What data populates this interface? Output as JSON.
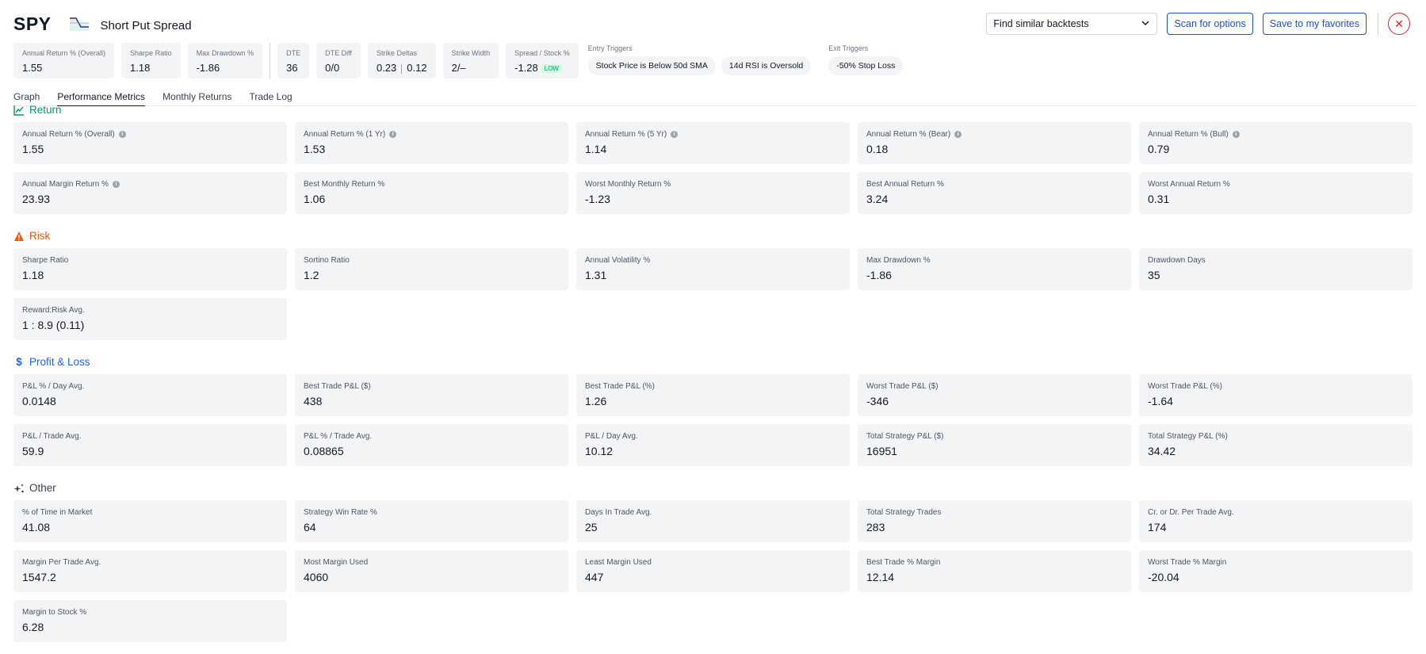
{
  "header": {
    "ticker": "SPY",
    "strategy_name": "Short Put Spread",
    "similar_select": "Find similar backtests",
    "scan_button": "Scan for options",
    "favorites_button": "Save to my favorites",
    "close_symbol": "✕"
  },
  "summary": {
    "annual_return": {
      "label": "Annual Return % (Overall)",
      "value": "1.55"
    },
    "sharpe": {
      "label": "Sharpe Ratio",
      "value": "1.18"
    },
    "max_drawdown": {
      "label": "Max Drawdown %",
      "value": "-1.86"
    },
    "dte": {
      "label": "DTE",
      "value": "36"
    },
    "dte_diff": {
      "label": "DTE Diff",
      "value": "0/0"
    },
    "strike_deltas": {
      "label": "Strike Deltas",
      "value_a": "0.23",
      "value_b": "0.12"
    },
    "strike_width": {
      "label": "Strike Width",
      "value": "2/–"
    },
    "spread_stock": {
      "label": "Spread / Stock %",
      "value": "-1.28",
      "badge": "LOW"
    },
    "entry_triggers": {
      "label": "Entry Triggers",
      "items": [
        "Stock Price is Below 50d SMA",
        "14d RSI is Oversold"
      ]
    },
    "exit_triggers": {
      "label": "Exit Triggers",
      "items": [
        "-50% Stop Loss"
      ]
    }
  },
  "tabs": [
    "Graph",
    "Performance Metrics",
    "Monthly Returns",
    "Trade Log"
  ],
  "active_tab": "Performance Metrics",
  "colors": {
    "return": "#059669",
    "risk": "#ea580c",
    "pnl": "#2563eb",
    "other": "#374151"
  },
  "sections": {
    "return": {
      "title": "Return",
      "rows": [
        [
          {
            "label": "Annual Return % (Overall)",
            "value": "1.55",
            "info": true
          },
          {
            "label": "Annual Return % (1 Yr)",
            "value": "1.53",
            "info": true
          },
          {
            "label": "Annual Return % (5 Yr)",
            "value": "1.14",
            "info": true
          },
          {
            "label": "Annual Return % (Bear)",
            "value": "0.18",
            "info": true
          },
          {
            "label": "Annual Return % (Bull)",
            "value": "0.79",
            "info": true
          }
        ],
        [
          {
            "label": "Annual Margin Return %",
            "value": "23.93",
            "info": true
          },
          {
            "label": "Best Monthly Return %",
            "value": "1.06"
          },
          {
            "label": "Worst Monthly Return %",
            "value": "-1.23"
          },
          {
            "label": "Best Annual Return %",
            "value": "3.24"
          },
          {
            "label": "Worst Annual Return %",
            "value": "0.31"
          }
        ]
      ]
    },
    "risk": {
      "title": "Risk",
      "rows": [
        [
          {
            "label": "Sharpe Ratio",
            "value": "1.18"
          },
          {
            "label": "Sortino Ratio",
            "value": "1.2"
          },
          {
            "label": "Annual Volatility %",
            "value": "1.31"
          },
          {
            "label": "Max Drawdown %",
            "value": "-1.86"
          },
          {
            "label": "Drawdown Days",
            "value": "35"
          }
        ],
        [
          {
            "label": "Reward:Risk Avg.",
            "value": "1 : 8.9 (0.11)"
          }
        ]
      ]
    },
    "pnl": {
      "title": "Profit & Loss",
      "rows": [
        [
          {
            "label": "P&L % / Day Avg.",
            "value": "0.0148"
          },
          {
            "label": "Best Trade P&L ($)",
            "value": "438"
          },
          {
            "label": "Best Trade P&L (%)",
            "value": "1.26"
          },
          {
            "label": "Worst Trade P&L ($)",
            "value": "-346"
          },
          {
            "label": "Worst Trade P&L (%)",
            "value": "-1.64"
          }
        ],
        [
          {
            "label": "P&L / Trade Avg.",
            "value": "59.9"
          },
          {
            "label": "P&L % / Trade Avg.",
            "value": "0.08865"
          },
          {
            "label": "P&L / Day Avg.",
            "value": "10.12"
          },
          {
            "label": "Total Strategy P&L ($)",
            "value": "16951"
          },
          {
            "label": "Total Strategy P&L (%)",
            "value": "34.42"
          }
        ]
      ]
    },
    "other": {
      "title": "Other",
      "rows": [
        [
          {
            "label": "% of Time in Market",
            "value": "41.08"
          },
          {
            "label": "Strategy Win Rate %",
            "value": "64"
          },
          {
            "label": "Days In Trade Avg.",
            "value": "25"
          },
          {
            "label": "Total Strategy Trades",
            "value": "283"
          },
          {
            "label": "Cr. or Dr. Per Trade Avg.",
            "value": "174"
          }
        ],
        [
          {
            "label": "Margin Per Trade Avg.",
            "value": "1547.2"
          },
          {
            "label": "Most Margin Used",
            "value": "4060"
          },
          {
            "label": "Least Margin Used",
            "value": "447"
          },
          {
            "label": "Best Trade % Margin",
            "value": "12.14"
          },
          {
            "label": "Worst Trade % Margin",
            "value": "-20.04"
          }
        ],
        [
          {
            "label": "Margin to Stock %",
            "value": "6.28"
          }
        ]
      ]
    }
  }
}
